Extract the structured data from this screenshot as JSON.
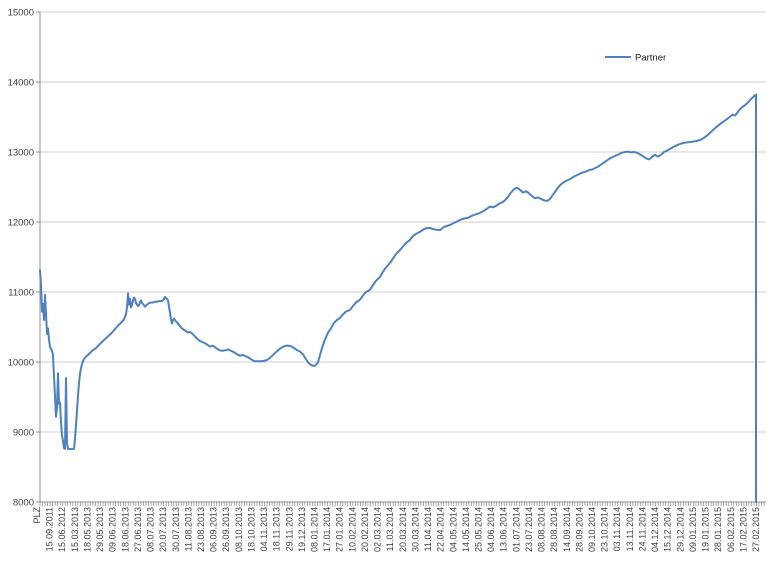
{
  "chart_data": {
    "type": "line",
    "title": "",
    "legend": {
      "position": "top-right-inside",
      "entries": [
        "Partner"
      ]
    },
    "y_axis": {
      "label": "",
      "min": 8000,
      "max": 15000,
      "tick_interval": 1000,
      "tick_labels": [
        "8000",
        "9000",
        "10000",
        "11000",
        "12000",
        "13000",
        "14000",
        "15000"
      ],
      "gridlines": true
    },
    "x_axis": {
      "label_rotation_deg": 90,
      "tick_labels": [
        "PLZ",
        "15.09.2011",
        "15.06.2012",
        "15.03.2013",
        "18.05.2013",
        "29.05.2013",
        "09.06.2013",
        "18.06.2013",
        "27.06.2013",
        "08.07.2013",
        "20.07.2013",
        "30.07.2013",
        "11.08.2013",
        "23.08.2013",
        "06.09.2013",
        "26.09.2013",
        "08.10.2013",
        "18.10.2013",
        "04.11.2013",
        "18.11.2013",
        "29.11.2013",
        "19.12.2013",
        "08.01.2014",
        "17.01.2014",
        "27.01.2014",
        "10.02.2014",
        "20.02.2014",
        "02.03.2014",
        "11.03.2014",
        "20.03.2014",
        "30.03.2014",
        "11.04.2014",
        "22.04.2014",
        "04.05.2014",
        "14.05.2014",
        "25.05.2014",
        "04.06.2014",
        "13.06.2014",
        "01.07.2014",
        "23.07.2014",
        "08.08.2014",
        "28.08.2014",
        "14.09.2014",
        "28.09.2014",
        "09.10.2014",
        "23.10.2014",
        "03.11.2014",
        "13.11.2014",
        "24.11.2014",
        "04.12.2014",
        "15.12.2014",
        "29.12.2014",
        "09.01.2015",
        "19.01.2015",
        "28.01.2015",
        "06.02.2015",
        "17.02.2015",
        "27.02.2015"
      ]
    },
    "series": [
      {
        "name": "Partner",
        "color": "#4F81BD",
        "points": [
          [
            40,
            11310
          ],
          [
            40.5,
            11200
          ],
          [
            41,
            11100
          ],
          [
            42,
            10720
          ],
          [
            43,
            10830
          ],
          [
            44,
            10600
          ],
          [
            45,
            10960
          ],
          [
            46,
            10700
          ],
          [
            47,
            10400
          ],
          [
            48,
            10480
          ],
          [
            49,
            10320
          ],
          [
            50,
            10220
          ],
          [
            51,
            10190
          ],
          [
            52,
            10160
          ],
          [
            53,
            10100
          ],
          [
            54,
            9800
          ],
          [
            55,
            9500
          ],
          [
            56,
            9220
          ],
          [
            57,
            9350
          ],
          [
            58,
            9840
          ],
          [
            59,
            9400
          ],
          [
            60,
            9420
          ],
          [
            61,
            9150
          ],
          [
            62,
            8950
          ],
          [
            63,
            8870
          ],
          [
            64,
            8770
          ],
          [
            65,
            8760
          ],
          [
            66,
            9770
          ],
          [
            67,
            8850
          ],
          [
            68,
            8760
          ],
          [
            70,
            8755
          ],
          [
            72,
            8755
          ],
          [
            74,
            8760
          ],
          [
            75,
            8900
          ],
          [
            76,
            9100
          ],
          [
            77,
            9300
          ],
          [
            78,
            9520
          ],
          [
            79,
            9700
          ],
          [
            80,
            9830
          ],
          [
            81,
            9910
          ],
          [
            82,
            9970
          ],
          [
            83,
            10010
          ],
          [
            84,
            10040
          ],
          [
            85,
            10060
          ],
          [
            86,
            10080
          ],
          [
            88,
            10100
          ],
          [
            90,
            10130
          ],
          [
            92,
            10160
          ],
          [
            94,
            10180
          ],
          [
            96,
            10200
          ],
          [
            98,
            10230
          ],
          [
            100,
            10260
          ],
          [
            103,
            10300
          ],
          [
            106,
            10340
          ],
          [
            109,
            10380
          ],
          [
            112,
            10420
          ],
          [
            115,
            10470
          ],
          [
            118,
            10520
          ],
          [
            121,
            10560
          ],
          [
            124,
            10610
          ],
          [
            126,
            10680
          ],
          [
            127,
            10780
          ],
          [
            128,
            10980
          ],
          [
            129,
            10820
          ],
          [
            130,
            10900
          ],
          [
            131,
            10780
          ],
          [
            132,
            10820
          ],
          [
            133,
            10880
          ],
          [
            134,
            10920
          ],
          [
            135,
            10900
          ],
          [
            136,
            10840
          ],
          [
            137,
            10820
          ],
          [
            138,
            10800
          ],
          [
            139,
            10810
          ],
          [
            140,
            10860
          ],
          [
            141,
            10880
          ],
          [
            142,
            10840
          ],
          [
            143,
            10830
          ],
          [
            145,
            10790
          ],
          [
            147,
            10820
          ],
          [
            149,
            10840
          ],
          [
            151,
            10850
          ],
          [
            153,
            10850
          ],
          [
            155,
            10860
          ],
          [
            157,
            10860
          ],
          [
            159,
            10870
          ],
          [
            161,
            10870
          ],
          [
            163,
            10880
          ],
          [
            165,
            10930
          ],
          [
            167,
            10900
          ],
          [
            168,
            10880
          ],
          [
            169,
            10790
          ],
          [
            170,
            10700
          ],
          [
            171,
            10610
          ],
          [
            172,
            10550
          ],
          [
            173,
            10600
          ],
          [
            174,
            10620
          ],
          [
            176,
            10580
          ],
          [
            178,
            10550
          ],
          [
            180,
            10510
          ],
          [
            182,
            10480
          ],
          [
            184,
            10460
          ],
          [
            186,
            10440
          ],
          [
            188,
            10420
          ],
          [
            190,
            10430
          ],
          [
            192,
            10410
          ],
          [
            194,
            10380
          ],
          [
            196,
            10350
          ],
          [
            198,
            10320
          ],
          [
            200,
            10300
          ],
          [
            203,
            10280
          ],
          [
            206,
            10260
          ],
          [
            210,
            10220
          ],
          [
            213,
            10235
          ],
          [
            216,
            10200
          ],
          [
            219,
            10170
          ],
          [
            222,
            10160
          ],
          [
            225,
            10165
          ],
          [
            228,
            10180
          ],
          [
            231,
            10160
          ],
          [
            234,
            10140
          ],
          [
            237,
            10110
          ],
          [
            240,
            10090
          ],
          [
            243,
            10100
          ],
          [
            246,
            10080
          ],
          [
            249,
            10060
          ],
          [
            252,
            10030
          ],
          [
            255,
            10010
          ],
          [
            258,
            10010
          ],
          [
            261,
            10010
          ],
          [
            264,
            10015
          ],
          [
            267,
            10030
          ],
          [
            270,
            10060
          ],
          [
            273,
            10100
          ],
          [
            276,
            10140
          ],
          [
            279,
            10180
          ],
          [
            282,
            10210
          ],
          [
            285,
            10230
          ],
          [
            288,
            10235
          ],
          [
            291,
            10225
          ],
          [
            294,
            10200
          ],
          [
            297,
            10170
          ],
          [
            300,
            10150
          ],
          [
            303,
            10110
          ],
          [
            306,
            10040
          ],
          [
            309,
            9980
          ],
          [
            312,
            9950
          ],
          [
            315,
            9945
          ],
          [
            318,
            9995
          ],
          [
            320,
            10100
          ],
          [
            322,
            10200
          ],
          [
            325,
            10320
          ],
          [
            328,
            10420
          ],
          [
            331,
            10480
          ],
          [
            334,
            10560
          ],
          [
            337,
            10600
          ],
          [
            340,
            10630
          ],
          [
            343,
            10680
          ],
          [
            346,
            10720
          ],
          [
            350,
            10745
          ],
          [
            353,
            10800
          ],
          [
            356,
            10850
          ],
          [
            360,
            10890
          ],
          [
            363,
            10950
          ],
          [
            366,
            11000
          ],
          [
            370,
            11030
          ],
          [
            373,
            11100
          ],
          [
            376,
            11160
          ],
          [
            380,
            11215
          ],
          [
            383,
            11290
          ],
          [
            386,
            11350
          ],
          [
            390,
            11415
          ],
          [
            393,
            11480
          ],
          [
            396,
            11540
          ],
          [
            400,
            11600
          ],
          [
            403,
            11650
          ],
          [
            406,
            11700
          ],
          [
            410,
            11745
          ],
          [
            413,
            11800
          ],
          [
            416,
            11830
          ],
          [
            420,
            11860
          ],
          [
            423,
            11890
          ],
          [
            426,
            11910
          ],
          [
            430,
            11915
          ],
          [
            433,
            11900
          ],
          [
            436,
            11890
          ],
          [
            440,
            11885
          ],
          [
            443,
            11920
          ],
          [
            446,
            11940
          ],
          [
            450,
            11957
          ],
          [
            453,
            11980
          ],
          [
            456,
            12000
          ],
          [
            460,
            12030
          ],
          [
            464,
            12050
          ],
          [
            468,
            12060
          ],
          [
            472,
            12090
          ],
          [
            476,
            12110
          ],
          [
            480,
            12130
          ],
          [
            484,
            12160
          ],
          [
            487,
            12190
          ],
          [
            490,
            12220
          ],
          [
            493,
            12210
          ],
          [
            496,
            12230
          ],
          [
            499,
            12260
          ],
          [
            502,
            12280
          ],
          [
            505,
            12310
          ],
          [
            508,
            12360
          ],
          [
            511,
            12420
          ],
          [
            514,
            12470
          ],
          [
            517,
            12490
          ],
          [
            520,
            12460
          ],
          [
            523,
            12420
          ],
          [
            526,
            12440
          ],
          [
            529,
            12410
          ],
          [
            532,
            12370
          ],
          [
            535,
            12340
          ],
          [
            538,
            12350
          ],
          [
            541,
            12330
          ],
          [
            544,
            12310
          ],
          [
            547,
            12300
          ],
          [
            550,
            12330
          ],
          [
            553,
            12390
          ],
          [
            556,
            12450
          ],
          [
            559,
            12510
          ],
          [
            562,
            12550
          ],
          [
            565,
            12580
          ],
          [
            568,
            12600
          ],
          [
            571,
            12620
          ],
          [
            574,
            12650
          ],
          [
            577,
            12670
          ],
          [
            580,
            12690
          ],
          [
            583,
            12710
          ],
          [
            586,
            12720
          ],
          [
            589,
            12740
          ],
          [
            592,
            12750
          ],
          [
            595,
            12770
          ],
          [
            598,
            12790
          ],
          [
            601,
            12820
          ],
          [
            604,
            12850
          ],
          [
            607,
            12880
          ],
          [
            610,
            12910
          ],
          [
            613,
            12930
          ],
          [
            616,
            12950
          ],
          [
            619,
            12970
          ],
          [
            622,
            12990
          ],
          [
            625,
            13000
          ],
          [
            628,
            13005
          ],
          [
            631,
            12995
          ],
          [
            634,
            13000
          ],
          [
            637,
            12990
          ],
          [
            640,
            12965
          ],
          [
            643,
            12940
          ],
          [
            646,
            12910
          ],
          [
            649,
            12895
          ],
          [
            652,
            12930
          ],
          [
            655,
            12960
          ],
          [
            658,
            12935
          ],
          [
            661,
            12960
          ],
          [
            664,
            13000
          ],
          [
            667,
            13020
          ],
          [
            670,
            13045
          ],
          [
            673,
            13070
          ],
          [
            676,
            13090
          ],
          [
            679,
            13110
          ],
          [
            682,
            13125
          ],
          [
            685,
            13135
          ],
          [
            688,
            13140
          ],
          [
            691,
            13145
          ],
          [
            694,
            13150
          ],
          [
            697,
            13160
          ],
          [
            700,
            13170
          ],
          [
            703,
            13195
          ],
          [
            706,
            13225
          ],
          [
            709,
            13260
          ],
          [
            712,
            13300
          ],
          [
            715,
            13340
          ],
          [
            718,
            13375
          ],
          [
            721,
            13410
          ],
          [
            724,
            13440
          ],
          [
            727,
            13470
          ],
          [
            730,
            13505
          ],
          [
            733,
            13535
          ],
          [
            735,
            13520
          ],
          [
            737,
            13555
          ],
          [
            739,
            13595
          ],
          [
            741,
            13625
          ],
          [
            743,
            13650
          ],
          [
            745,
            13670
          ],
          [
            747,
            13695
          ],
          [
            749,
            13725
          ],
          [
            751,
            13755
          ],
          [
            753,
            13785
          ],
          [
            755,
            13810
          ],
          [
            756,
            13820
          ],
          [
            756,
            8000
          ]
        ]
      }
    ],
    "colors": {
      "line": "#4F81BD",
      "gridline": "#CDCDCD",
      "axis": "#8C8C8C",
      "text": "#404040",
      "background": "#FFFFFF"
    }
  }
}
